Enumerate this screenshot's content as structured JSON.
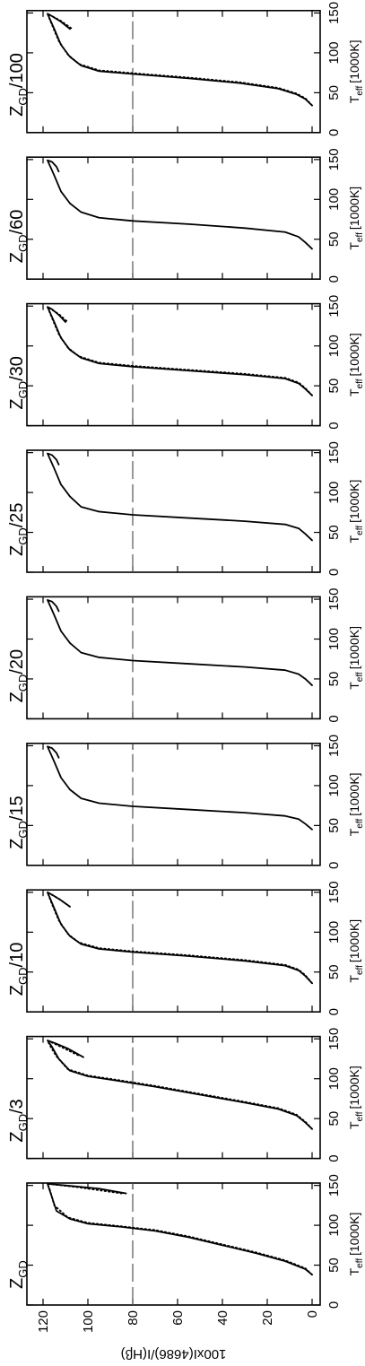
{
  "chart_data": [
    {
      "type": "line",
      "title": {
        "main": "Z",
        "sub": "GD"
      },
      "xlabel": {
        "main": "T",
        "sub": "eff",
        "unit": "[1000K]"
      },
      "ylabel": "100xI(4686)/I(Hβ)",
      "ytick_labels": true,
      "xlim": [
        0,
        153
      ],
      "ylim": [
        -3.6,
        127.2
      ],
      "xticks": [
        0,
        50,
        100,
        150
      ],
      "yticks": [
        0,
        20,
        40,
        60,
        80,
        100,
        120
      ],
      "ref_line": 80,
      "series": [
        {
          "style": "solid",
          "color": "#000000",
          "x": [
            38,
            45,
            55,
            65,
            75,
            85,
            93,
            98,
            102,
            108,
            118,
            135,
            152,
            150,
            146,
            140
          ],
          "values": [
            0,
            3,
            12,
            25,
            40,
            55,
            70,
            85,
            100,
            108,
            114,
            116,
            118,
            110,
            95,
            83
          ]
        },
        {
          "style": "dotted",
          "color": "#000000",
          "x": [
            38,
            46,
            56,
            66,
            76,
            86,
            94,
            99,
            103,
            110,
            125,
            145,
            152,
            148,
            140
          ],
          "values": [
            0,
            3,
            12,
            25,
            40,
            55,
            70,
            86,
            100,
            109,
            115,
            117,
            118,
            105,
            85
          ]
        }
      ]
    },
    {
      "type": "line",
      "title": {
        "main": "Z",
        "sub": "GD",
        "suffix": "/3"
      },
      "xlabel": {
        "main": "T",
        "sub": "eff",
        "unit": "[1000K]"
      },
      "ytick_labels": false,
      "xlim": [
        0,
        153
      ],
      "ylim": [
        -3.6,
        127.2
      ],
      "xticks": [
        0,
        50,
        100,
        150
      ],
      "yticks": [
        0,
        20,
        40,
        60,
        80,
        100,
        120
      ],
      "ref_line": 80,
      "series": [
        {
          "style": "solid",
          "color": "#000000",
          "x": [
            37,
            45,
            54,
            62,
            70,
            80,
            90,
            98,
            103,
            110,
            125,
            140,
            148,
            145,
            138,
            127
          ],
          "values": [
            0,
            3,
            7,
            15,
            30,
            50,
            70,
            88,
            100,
            108,
            113,
            116,
            118,
            115,
            109,
            102
          ]
        },
        {
          "style": "dotted",
          "color": "#000000",
          "x": [
            37,
            46,
            55,
            63,
            71,
            81,
            91,
            99,
            104,
            112,
            128,
            142,
            148,
            140,
            129
          ],
          "values": [
            0,
            3,
            7,
            15,
            30,
            50,
            70,
            88,
            100,
            109,
            114,
            117,
            118,
            112,
            104
          ]
        }
      ]
    },
    {
      "type": "line",
      "title": {
        "main": "Z",
        "sub": "GD",
        "suffix": "/10"
      },
      "xlabel": {
        "main": "T",
        "sub": "eff",
        "unit": "[1000K]"
      },
      "ytick_labels": false,
      "xlim": [
        0,
        153
      ],
      "ylim": [
        -3.6,
        127.2
      ],
      "xticks": [
        0,
        50,
        100,
        150
      ],
      "yticks": [
        0,
        20,
        40,
        60,
        80,
        100,
        120
      ],
      "ref_line": 80,
      "series": [
        {
          "style": "solid",
          "color": "#000000",
          "x": [
            36,
            45,
            52,
            58,
            64,
            70,
            75,
            79,
            85,
            95,
            110,
            130,
            150,
            147,
            140,
            132
          ],
          "values": [
            0,
            3,
            6,
            12,
            30,
            55,
            80,
            95,
            103,
            108,
            112,
            115,
            118,
            116,
            112,
            108
          ]
        },
        {
          "style": "dotted",
          "color": "#000000",
          "x": [
            36,
            46,
            53,
            59,
            65,
            71,
            76,
            80,
            87,
            98,
            115,
            135,
            150,
            142,
            132
          ],
          "values": [
            0,
            3,
            6,
            12,
            30,
            55,
            80,
            95,
            104,
            109,
            113,
            116,
            118,
            113,
            108
          ]
        }
      ]
    },
    {
      "type": "line",
      "title": {
        "main": "Z",
        "sub": "GD",
        "suffix": "/15"
      },
      "xlabel": {
        "main": "T",
        "sub": "eff",
        "unit": "[1000K]"
      },
      "ytick_labels": false,
      "xlim": [
        0,
        153
      ],
      "ylim": [
        -3.6,
        127.2
      ],
      "xticks": [
        0,
        50,
        100,
        150
      ],
      "yticks": [
        0,
        20,
        40,
        60,
        80,
        100,
        120
      ],
      "ref_line": 80,
      "series": [
        {
          "style": "solid",
          "color": "#000000",
          "x": [
            45,
            52,
            58,
            62,
            66,
            70,
            74,
            78,
            84,
            95,
            110,
            130,
            149,
            147,
            141,
            135
          ],
          "values": [
            0,
            3,
            6,
            12,
            30,
            55,
            80,
            95,
            103,
            108,
            112,
            115,
            118,
            116,
            114,
            113
          ]
        }
      ]
    },
    {
      "type": "line",
      "title": {
        "main": "Z",
        "sub": "GD",
        "suffix": "/20"
      },
      "xlabel": {
        "main": "T",
        "sub": "eff",
        "unit": "[1000K]"
      },
      "ytick_labels": false,
      "xlim": [
        0,
        153
      ],
      "ylim": [
        -3.6,
        127.2
      ],
      "xticks": [
        0,
        50,
        100,
        150
      ],
      "yticks": [
        0,
        20,
        40,
        60,
        80,
        100,
        120
      ],
      "ref_line": 80,
      "series": [
        {
          "style": "solid",
          "color": "#000000",
          "x": [
            42,
            50,
            56,
            61,
            65,
            69,
            73,
            77,
            83,
            95,
            110,
            130,
            149,
            147,
            141,
            135
          ],
          "values": [
            0,
            3,
            6,
            12,
            30,
            55,
            80,
            95,
            103,
            108,
            112,
            115,
            118,
            116,
            114,
            113
          ]
        }
      ]
    },
    {
      "type": "line",
      "title": {
        "main": "Z",
        "sub": "GD",
        "suffix": "/25"
      },
      "xlabel": {
        "main": "T",
        "sub": "eff",
        "unit": "[1000K]"
      },
      "ytick_labels": false,
      "xlim": [
        0,
        153
      ],
      "ylim": [
        -3.6,
        127.2
      ],
      "xticks": [
        0,
        50,
        100,
        150
      ],
      "yticks": [
        0,
        20,
        40,
        60,
        80,
        100,
        120
      ],
      "ref_line": 80,
      "series": [
        {
          "style": "solid",
          "color": "#000000",
          "x": [
            40,
            48,
            55,
            60,
            64,
            68,
            72,
            76,
            82,
            95,
            110,
            130,
            149,
            147,
            141,
            135
          ],
          "values": [
            0,
            3,
            6,
            12,
            30,
            55,
            80,
            95,
            103,
            108,
            112,
            115,
            118,
            116,
            114,
            113
          ]
        }
      ]
    },
    {
      "type": "line",
      "title": {
        "main": "Z",
        "sub": "GD",
        "suffix": "/30"
      },
      "xlabel": {
        "main": "T",
        "sub": "eff",
        "unit": "[1000K]"
      },
      "ytick_labels": false,
      "xlim": [
        0,
        153
      ],
      "ylim": [
        -3.6,
        127.2
      ],
      "xticks": [
        0,
        50,
        100,
        150
      ],
      "yticks": [
        0,
        20,
        40,
        60,
        80,
        100,
        120
      ],
      "ref_line": 80,
      "series": [
        {
          "style": "solid",
          "color": "#000000",
          "x": [
            38,
            46,
            53,
            59,
            64,
            69,
            74,
            78,
            85,
            95,
            110,
            130,
            149,
            146,
            139,
            130
          ],
          "values": [
            0,
            3,
            6,
            12,
            30,
            55,
            80,
            95,
            103,
            108,
            112,
            115,
            118,
            116,
            113,
            110
          ]
        },
        {
          "style": "dotted",
          "color": "#000000",
          "x": [
            38,
            47,
            54,
            60,
            65,
            70,
            75,
            79,
            87,
            98,
            115,
            135,
            149,
            140,
            130
          ],
          "values": [
            0,
            3,
            6,
            12,
            30,
            55,
            80,
            95,
            104,
            109,
            113,
            116,
            118,
            113,
            109
          ]
        }
      ]
    },
    {
      "type": "line",
      "title": {
        "main": "Z",
        "sub": "GD",
        "suffix": "/60"
      },
      "xlabel": {
        "main": "T",
        "sub": "eff",
        "unit": "[1000K]"
      },
      "ytick_labels": false,
      "xlim": [
        0,
        153
      ],
      "ylim": [
        -3.6,
        127.2
      ],
      "xticks": [
        0,
        50,
        100,
        150
      ],
      "yticks": [
        0,
        20,
        40,
        60,
        80,
        100,
        120
      ],
      "ref_line": 80,
      "series": [
        {
          "style": "solid",
          "color": "#000000",
          "x": [
            38,
            46,
            53,
            59,
            64,
            69,
            73,
            77,
            84,
            95,
            110,
            130,
            149,
            147,
            141,
            135
          ],
          "values": [
            0,
            3,
            6,
            12,
            30,
            55,
            80,
            95,
            103,
            108,
            112,
            115,
            118,
            116,
            114,
            113
          ]
        }
      ]
    },
    {
      "type": "line",
      "title": {
        "main": "Z",
        "sub": "GD",
        "suffix": "/100"
      },
      "xlabel": {
        "main": "T",
        "sub": "eff",
        "unit": "[1000K]"
      },
      "ytick_labels": false,
      "xlim": [
        0,
        153
      ],
      "ylim": [
        -3.6,
        127.2
      ],
      "xticks": [
        0,
        50,
        100,
        150
      ],
      "yticks": [
        0,
        20,
        40,
        60,
        80,
        100,
        120
      ],
      "ref_line": 80,
      "series": [
        {
          "style": "solid",
          "color": "#000000",
          "x": [
            34,
            42,
            48,
            55,
            62,
            68,
            73,
            77,
            84,
            95,
            110,
            130,
            149,
            146,
            139,
            130
          ],
          "values": [
            0,
            3,
            7,
            15,
            32,
            55,
            78,
            95,
            103,
            108,
            112,
            115,
            118,
            116,
            112,
            108
          ]
        },
        {
          "style": "dotted",
          "color": "#000000",
          "x": [
            34,
            43,
            49,
            56,
            63,
            69,
            74,
            78,
            86,
            98,
            115,
            135,
            149,
            140,
            130
          ],
          "values": [
            0,
            3,
            7,
            15,
            32,
            55,
            78,
            95,
            104,
            109,
            113,
            116,
            118,
            112,
            107
          ]
        }
      ]
    }
  ]
}
